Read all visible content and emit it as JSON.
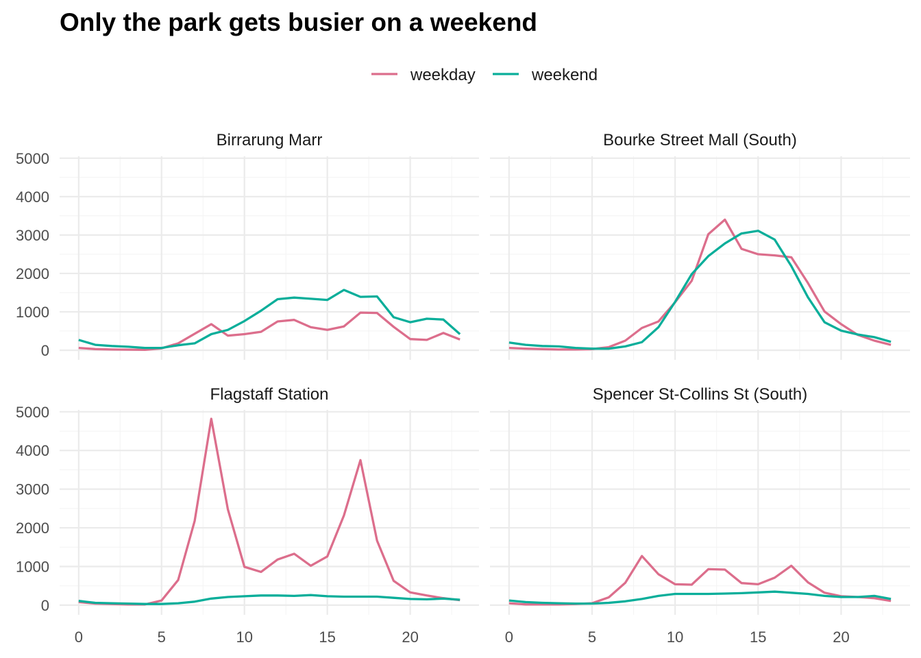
{
  "chart_data": {
    "type": "line",
    "title": "Only the park gets busier on a weekend",
    "xlabel": "",
    "ylabel": "",
    "xlim": [
      0,
      23
    ],
    "ylim": [
      0,
      5000
    ],
    "x_ticks": [
      "0",
      "5",
      "10",
      "15",
      "20"
    ],
    "y_ticks": [
      "0",
      "1000",
      "2000",
      "3000",
      "4000",
      "5000"
    ],
    "legend_position": "top",
    "grid": true,
    "legend": [
      {
        "name": "weekday",
        "color": "#dc6e8c"
      },
      {
        "name": "weekend",
        "color": "#0aae9a"
      }
    ],
    "x": [
      0,
      1,
      2,
      3,
      4,
      5,
      6,
      7,
      8,
      9,
      10,
      11,
      12,
      13,
      14,
      15,
      16,
      17,
      18,
      19,
      20,
      21,
      22,
      23
    ],
    "panels": [
      {
        "name": "Birrarung Marr",
        "series": [
          {
            "name": "weekday",
            "values": [
              60,
              30,
              20,
              15,
              10,
              50,
              180,
              430,
              680,
              380,
              420,
              480,
              750,
              790,
              600,
              530,
              620,
              980,
              970,
              610,
              290,
              270,
              450,
              280
            ]
          },
          {
            "name": "weekend",
            "values": [
              270,
              140,
              110,
              90,
              60,
              60,
              130,
              180,
              420,
              530,
              760,
              1030,
              1330,
              1370,
              1340,
              1310,
              1570,
              1390,
              1400,
              860,
              730,
              820,
              800,
              420
            ]
          }
        ]
      },
      {
        "name": "Bourke Street Mall (South)",
        "series": [
          {
            "name": "weekday",
            "values": [
              60,
              40,
              30,
              20,
              20,
              30,
              80,
              250,
              580,
              750,
              1250,
              1810,
              3020,
              3400,
              2640,
              2500,
              2470,
              2420,
              1750,
              1010,
              680,
              400,
              250,
              140
            ]
          },
          {
            "name": "weekend",
            "values": [
              200,
              140,
              110,
              100,
              60,
              40,
              40,
              100,
              210,
              600,
              1260,
              1980,
              2450,
              2780,
              3040,
              3110,
              2880,
              2190,
              1380,
              730,
              510,
              410,
              340,
              220
            ]
          }
        ]
      },
      {
        "name": "Flagstaff Station",
        "series": [
          {
            "name": "weekday",
            "values": [
              80,
              40,
              30,
              20,
              20,
              120,
              650,
              2180,
              4820,
              2480,
              990,
              860,
              1180,
              1330,
              1020,
              1260,
              2320,
              3750,
              1670,
              630,
              330,
              250,
              180,
              130
            ]
          },
          {
            "name": "weekend",
            "values": [
              110,
              60,
              50,
              40,
              30,
              30,
              50,
              90,
              170,
              210,
              230,
              250,
              250,
              240,
              260,
              230,
              220,
              220,
              220,
              190,
              160,
              150,
              170,
              140
            ]
          }
        ]
      },
      {
        "name": "Spencer St-Collins St (South)",
        "series": [
          {
            "name": "weekday",
            "values": [
              50,
              20,
              20,
              20,
              30,
              50,
              200,
              580,
              1270,
              800,
              540,
              530,
              930,
              920,
              570,
              540,
              710,
              1020,
              590,
              320,
              230,
              210,
              180,
              110
            ]
          },
          {
            "name": "weekend",
            "values": [
              120,
              80,
              60,
              50,
              40,
              40,
              60,
              100,
              160,
              240,
              290,
              290,
              290,
              300,
              310,
              330,
              350,
              320,
              290,
              240,
              210,
              210,
              240,
              160
            ]
          }
        ]
      }
    ]
  }
}
